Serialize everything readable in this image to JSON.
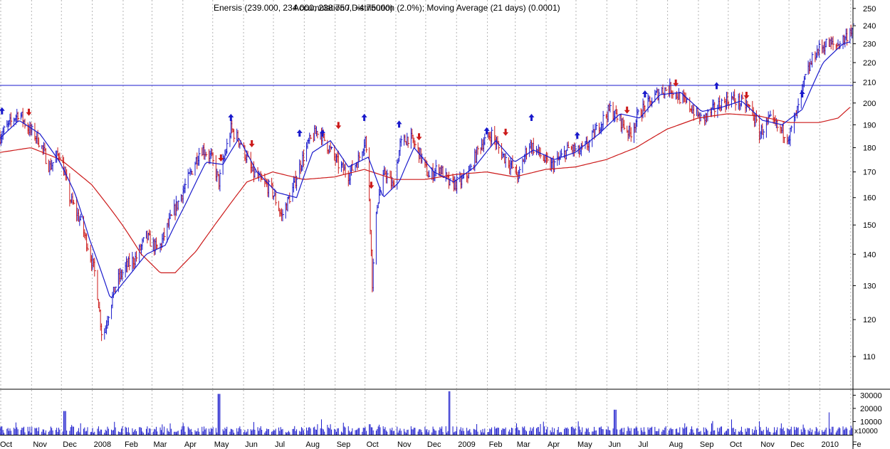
{
  "header": {
    "title": "Enersis (239.000, 234.000, 238.750, +4.75000)",
    "overlay_text": "Accumulation / Distribution (2.0%); Moving Average (21 days) (0.0001)"
  },
  "chart_data": {
    "type": "bar",
    "title": "Enersis (239.000, 234.000, 238.750, +4.75000)",
    "price_axis": {
      "ticks": [
        110,
        120,
        130,
        140,
        150,
        160,
        170,
        180,
        190,
        200,
        210,
        220,
        230,
        240,
        250
      ],
      "ylim": [
        102,
        255
      ],
      "scale": "log"
    },
    "volume_axis": {
      "ticks": [
        10000,
        20000,
        30000
      ],
      "tick_labels": [
        "10000",
        "20000",
        "30000"
      ],
      "multiplier_label": "x10000",
      "ylim": [
        0,
        34000
      ]
    },
    "x_axis": {
      "labels": [
        "Oct",
        "Nov",
        "Dec",
        "2008",
        "Feb",
        "Mar",
        "Apr",
        "May",
        "Jun",
        "Jul",
        "Aug",
        "Sep",
        "Oct",
        "Nov",
        "Dec",
        "2009",
        "Feb",
        "Mar",
        "Apr",
        "May",
        "Jun",
        "Jul",
        "Aug",
        "Sep",
        "Oct",
        "Nov",
        "Dec",
        "2010",
        "Fe"
      ],
      "start": "2007-10-01",
      "end": "2010-02-04"
    },
    "resistance_line": {
      "value": 208.5,
      "color": "#1a1acc"
    },
    "colors": {
      "up": "#1a1acc",
      "down": "#cc1a1a",
      "ma_short": "#1a1acc",
      "ma_long": "#cc1a1a",
      "grid": "#b4b4b4"
    },
    "price_path": [
      [
        "2007-10-01",
        185
      ],
      [
        "2007-10-10",
        190
      ],
      [
        "2007-10-20",
        196
      ],
      [
        "2007-10-28",
        189
      ],
      [
        "2007-11-08",
        184
      ],
      [
        "2007-11-20",
        172
      ],
      [
        "2007-11-30",
        178
      ],
      [
        "2007-12-10",
        160
      ],
      [
        "2007-12-20",
        152
      ],
      [
        "2007-12-28",
        143
      ],
      [
        "2008-01-05",
        133
      ],
      [
        "2008-01-12",
        114
      ],
      [
        "2008-01-18",
        122
      ],
      [
        "2008-01-26",
        131
      ],
      [
        "2008-02-05",
        136
      ],
      [
        "2008-02-15",
        139
      ],
      [
        "2008-02-25",
        146
      ],
      [
        "2008-03-08",
        141
      ],
      [
        "2008-03-18",
        150
      ],
      [
        "2008-03-30",
        160
      ],
      [
        "2008-04-08",
        168
      ],
      [
        "2008-04-20",
        180
      ],
      [
        "2008-04-30",
        176
      ],
      [
        "2008-05-08",
        166
      ],
      [
        "2008-05-20",
        188
      ],
      [
        "2008-05-30",
        182
      ],
      [
        "2008-06-10",
        170
      ],
      [
        "2008-06-20",
        166
      ],
      [
        "2008-06-30",
        163
      ],
      [
        "2008-07-10",
        153
      ],
      [
        "2008-07-20",
        162
      ],
      [
        "2008-07-28",
        172
      ],
      [
        "2008-08-06",
        182
      ],
      [
        "2008-08-16",
        188
      ],
      [
        "2008-08-25",
        181
      ],
      [
        "2008-09-05",
        173
      ],
      [
        "2008-09-15",
        169
      ],
      [
        "2008-09-25",
        175
      ],
      [
        "2008-10-02",
        184
      ],
      [
        "2008-10-06",
        160
      ],
      [
        "2008-10-09",
        131
      ],
      [
        "2008-10-14",
        158
      ],
      [
        "2008-10-22",
        170
      ],
      [
        "2008-10-30",
        164
      ],
      [
        "2008-11-06",
        181
      ],
      [
        "2008-11-15",
        185
      ],
      [
        "2008-11-25",
        178
      ],
      [
        "2008-12-05",
        168
      ],
      [
        "2008-12-15",
        172
      ],
      [
        "2008-12-26",
        165
      ],
      [
        "2009-01-06",
        166
      ],
      [
        "2009-01-15",
        170
      ],
      [
        "2009-01-25",
        181
      ],
      [
        "2009-02-06",
        186
      ],
      [
        "2009-02-15",
        178
      ],
      [
        "2009-02-25",
        173
      ],
      [
        "2009-03-05",
        168
      ],
      [
        "2009-03-15",
        182
      ],
      [
        "2009-03-25",
        178
      ],
      [
        "2009-04-05",
        172
      ],
      [
        "2009-04-15",
        175
      ],
      [
        "2009-04-25",
        180
      ],
      [
        "2009-05-05",
        178
      ],
      [
        "2009-05-15",
        182
      ],
      [
        "2009-05-25",
        190
      ],
      [
        "2009-06-05",
        197
      ],
      [
        "2009-06-15",
        192
      ],
      [
        "2009-06-25",
        186
      ],
      [
        "2009-07-05",
        196
      ],
      [
        "2009-07-15",
        200
      ],
      [
        "2009-07-25",
        206
      ],
      [
        "2009-08-05",
        207
      ],
      [
        "2009-08-15",
        202
      ],
      [
        "2009-08-25",
        198
      ],
      [
        "2009-09-05",
        192
      ],
      [
        "2009-09-15",
        196
      ],
      [
        "2009-09-25",
        200
      ],
      [
        "2009-10-05",
        202
      ],
      [
        "2009-10-15",
        200
      ],
      [
        "2009-10-25",
        197
      ],
      [
        "2009-11-02",
        186
      ],
      [
        "2009-11-12",
        192
      ],
      [
        "2009-11-22",
        188
      ],
      [
        "2009-12-02",
        185
      ],
      [
        "2009-12-10",
        196
      ],
      [
        "2009-12-18",
        212
      ],
      [
        "2009-12-28",
        225
      ],
      [
        "2010-01-08",
        230
      ],
      [
        "2010-01-18",
        229
      ],
      [
        "2010-01-27",
        233
      ],
      [
        "2010-02-01",
        238
      ]
    ],
    "ma_short_path": [
      [
        "2007-10-01",
        184
      ],
      [
        "2007-10-20",
        192
      ],
      [
        "2007-11-10",
        186
      ],
      [
        "2007-11-30",
        174
      ],
      [
        "2007-12-15",
        162
      ],
      [
        "2007-12-30",
        145
      ],
      [
        "2008-01-20",
        126
      ],
      [
        "2008-02-10",
        134
      ],
      [
        "2008-02-25",
        140
      ],
      [
        "2008-03-15",
        143
      ],
      [
        "2008-04-05",
        158
      ],
      [
        "2008-04-25",
        174
      ],
      [
        "2008-05-12",
        173
      ],
      [
        "2008-05-28",
        184
      ],
      [
        "2008-06-15",
        170
      ],
      [
        "2008-07-05",
        162
      ],
      [
        "2008-07-25",
        160
      ],
      [
        "2008-08-10",
        178
      ],
      [
        "2008-08-28",
        183
      ],
      [
        "2008-09-15",
        172
      ],
      [
        "2008-10-05",
        176
      ],
      [
        "2008-10-20",
        160
      ],
      [
        "2008-11-05",
        166
      ],
      [
        "2008-11-20",
        180
      ],
      [
        "2008-12-10",
        170
      ],
      [
        "2008-12-30",
        166
      ],
      [
        "2009-01-20",
        172
      ],
      [
        "2009-02-10",
        183
      ],
      [
        "2009-03-01",
        174
      ],
      [
        "2009-03-20",
        179
      ],
      [
        "2009-04-10",
        175
      ],
      [
        "2009-05-01",
        178
      ],
      [
        "2009-05-25",
        186
      ],
      [
        "2009-06-15",
        195
      ],
      [
        "2009-07-05",
        193
      ],
      [
        "2009-07-25",
        204
      ],
      [
        "2009-08-15",
        205
      ],
      [
        "2009-09-05",
        196
      ],
      [
        "2009-09-25",
        198
      ],
      [
        "2009-10-15",
        201
      ],
      [
        "2009-11-05",
        192
      ],
      [
        "2009-11-25",
        190
      ],
      [
        "2009-12-15",
        197
      ],
      [
        "2010-01-05",
        220
      ],
      [
        "2010-01-25",
        230
      ],
      [
        "2010-02-01",
        231
      ]
    ],
    "ma_long_path": [
      [
        "2007-10-01",
        178
      ],
      [
        "2007-11-01",
        180
      ],
      [
        "2007-12-01",
        175
      ],
      [
        "2008-01-01",
        165
      ],
      [
        "2008-02-01",
        150
      ],
      [
        "2008-02-20",
        140
      ],
      [
        "2008-03-10",
        134
      ],
      [
        "2008-03-25",
        134
      ],
      [
        "2008-04-15",
        141
      ],
      [
        "2008-05-10",
        153
      ],
      [
        "2008-06-05",
        166
      ],
      [
        "2008-07-01",
        170
      ],
      [
        "2008-08-01",
        167
      ],
      [
        "2008-09-01",
        168
      ],
      [
        "2008-10-01",
        171
      ],
      [
        "2008-11-01",
        167
      ],
      [
        "2008-12-01",
        167
      ],
      [
        "2009-01-01",
        169
      ],
      [
        "2009-02-01",
        170
      ],
      [
        "2009-03-01",
        168
      ],
      [
        "2009-04-01",
        171
      ],
      [
        "2009-05-01",
        172
      ],
      [
        "2009-06-01",
        175
      ],
      [
        "2009-07-01",
        180
      ],
      [
        "2009-08-01",
        188
      ],
      [
        "2009-09-01",
        193
      ],
      [
        "2009-10-01",
        195
      ],
      [
        "2009-11-01",
        194
      ],
      [
        "2009-12-01",
        191
      ],
      [
        "2010-01-01",
        191
      ],
      [
        "2010-01-20",
        193
      ],
      [
        "2010-02-01",
        198
      ]
    ],
    "volume_spikes": [
      [
        "2007-12-05",
        18000
      ],
      [
        "2008-05-08",
        31000
      ],
      [
        "2008-10-06",
        8000
      ],
      [
        "2008-12-26",
        33000
      ],
      [
        "2009-06-10",
        19000
      ],
      [
        "2010-01-10",
        17000
      ]
    ],
    "signals": [
      {
        "date": "2007-10-03",
        "type": "buy",
        "price": 196
      },
      {
        "date": "2007-10-30",
        "type": "sell",
        "price": 196
      },
      {
        "date": "2008-05-10",
        "type": "sell",
        "price": 176
      },
      {
        "date": "2008-05-20",
        "type": "buy",
        "price": 193
      },
      {
        "date": "2008-06-10",
        "type": "sell",
        "price": 182
      },
      {
        "date": "2008-07-28",
        "type": "buy",
        "price": 186
      },
      {
        "date": "2008-08-20",
        "type": "buy",
        "price": 186
      },
      {
        "date": "2008-09-05",
        "type": "sell",
        "price": 190
      },
      {
        "date": "2008-10-01",
        "type": "buy",
        "price": 193
      },
      {
        "date": "2008-10-08",
        "type": "sell",
        "price": 165
      },
      {
        "date": "2008-11-05",
        "type": "buy",
        "price": 190
      },
      {
        "date": "2008-11-25",
        "type": "sell",
        "price": 185
      },
      {
        "date": "2009-02-01",
        "type": "buy",
        "price": 187
      },
      {
        "date": "2009-02-20",
        "type": "sell",
        "price": 187
      },
      {
        "date": "2009-03-18",
        "type": "buy",
        "price": 193
      },
      {
        "date": "2009-05-03",
        "type": "buy",
        "price": 185
      },
      {
        "date": "2009-06-22",
        "type": "sell",
        "price": 197
      },
      {
        "date": "2009-07-10",
        "type": "buy",
        "price": 204
      },
      {
        "date": "2009-08-10",
        "type": "sell",
        "price": 210
      },
      {
        "date": "2009-09-20",
        "type": "buy",
        "price": 208
      },
      {
        "date": "2009-10-20",
        "type": "sell",
        "price": 204
      },
      {
        "date": "2009-12-15",
        "type": "buy",
        "price": 204
      }
    ]
  }
}
